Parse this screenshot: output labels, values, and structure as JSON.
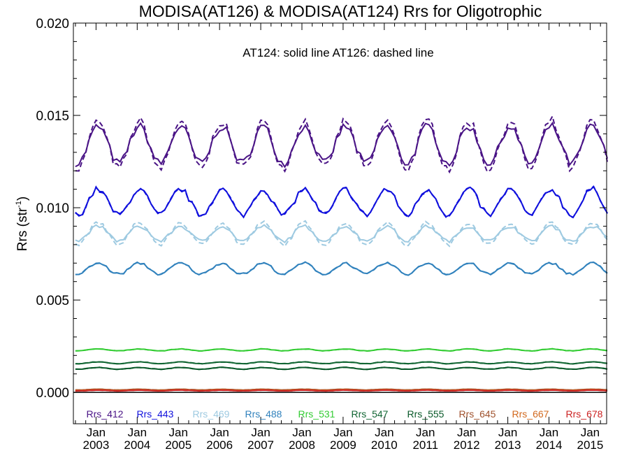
{
  "chart_data": {
    "type": "line",
    "title": "MODISA(AT126) & MODISA(AT124)  Rrs for Oligotrophic",
    "annotation": "AT124: solid line   AT126: dashed line",
    "ylabel_main": "Rrs (str",
    "ylabel_sup": "-1",
    "ylabel_close": ")",
    "ylim": [
      -0.0017,
      0.02
    ],
    "xlim": [
      2002.45,
      2015.4
    ],
    "yticks": [
      {
        "value": 0.0,
        "label": "0.000"
      },
      {
        "value": 0.005,
        "label": "0.005"
      },
      {
        "value": 0.01,
        "label": "0.010"
      },
      {
        "value": 0.015,
        "label": "0.015"
      },
      {
        "value": 0.02,
        "label": "0.020"
      }
    ],
    "xticks": [
      {
        "value": 2003,
        "month": "Jan",
        "year": "2003"
      },
      {
        "value": 2004,
        "month": "Jan",
        "year": "2004"
      },
      {
        "value": 2005,
        "month": "Jan",
        "year": "2005"
      },
      {
        "value": 2006,
        "month": "Jan",
        "year": "2006"
      },
      {
        "value": 2007,
        "month": "Jan",
        "year": "2007"
      },
      {
        "value": 2008,
        "month": "Jan",
        "year": "2008"
      },
      {
        "value": 2009,
        "month": "Jan",
        "year": "2009"
      },
      {
        "value": 2010,
        "month": "Jan",
        "year": "2010"
      },
      {
        "value": 2011,
        "month": "Jan",
        "year": "2011"
      },
      {
        "value": 2012,
        "month": "Jan",
        "year": "2012"
      },
      {
        "value": 2013,
        "month": "Jan",
        "year": "2013"
      },
      {
        "value": 2014,
        "month": "Jan",
        "year": "2014"
      },
      {
        "value": 2015,
        "month": "Jan",
        "year": "2015"
      }
    ],
    "grid": false,
    "legend_placement": "bottom",
    "series": [
      {
        "name": "Rrs_412",
        "color": "#4a1486",
        "mean": 0.0134,
        "amp": 0.001,
        "dashed_offset": 0.0003
      },
      {
        "name": "Rrs_443",
        "color": "#1010dd",
        "mean": 0.0103,
        "amp": 0.0007,
        "dashed_offset": 0.0
      },
      {
        "name": "Rrs_469",
        "color": "#9ecae1",
        "mean": 0.0086,
        "amp": 0.0004,
        "dashed_offset": 0.0002
      },
      {
        "name": "Rrs_488",
        "color": "#3182bd",
        "mean": 0.0067,
        "amp": 0.0003,
        "dashed_offset": 0.0
      },
      {
        "name": "Rrs_531",
        "color": "#33cc33",
        "mean": 0.0023,
        "amp": 5e-05,
        "dashed_offset": 0.0
      },
      {
        "name": "Rrs_547",
        "color": "#116633",
        "mean": 0.0016,
        "amp": 5e-05,
        "dashed_offset": 0.0
      },
      {
        "name": "Rrs_555",
        "color": "#0a5a2a",
        "mean": 0.0013,
        "amp": 5e-05,
        "dashed_offset": 0.0
      },
      {
        "name": "Rrs_645",
        "color": "#a0522d",
        "mean": 0.00015,
        "amp": 2e-05,
        "dashed_offset": 0.0
      },
      {
        "name": "Rrs_667",
        "color": "#d2691e",
        "mean": 0.00012,
        "amp": 2e-05,
        "dashed_offset": 0.0
      },
      {
        "name": "Rrs_678",
        "color": "#cc2222",
        "mean": 0.0001,
        "amp": 2e-05,
        "dashed_offset": 0.0
      }
    ]
  }
}
